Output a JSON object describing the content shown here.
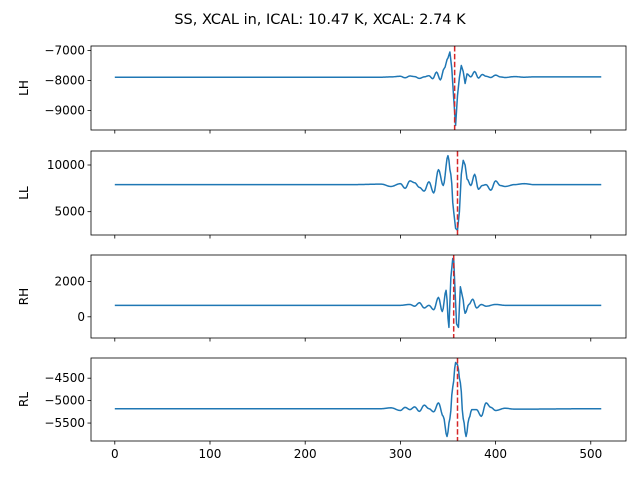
{
  "figure": {
    "title": "SS, XCAL in, ICAL: 10.47 K, XCAL: 2.74 K"
  },
  "chart_data": [
    {
      "type": "line",
      "ylabel": "LH",
      "xlim": [
        -25,
        537
      ],
      "ylim": [
        -9650,
        -6850
      ],
      "yticks": [
        -9000,
        -8000,
        -7000
      ],
      "yticklabels": [
        "−9000",
        "−8000",
        "−7000"
      ],
      "xticks": [
        0,
        100,
        200,
        300,
        400,
        500
      ],
      "xticklabels": [
        "",
        "",
        "",
        "",
        "",
        ""
      ],
      "line_color": "#1f77b4",
      "vline": {
        "x": 357,
        "color": "#d62728",
        "style": "dashed"
      },
      "signal": {
        "x": [
          0,
          280,
          290,
          300,
          305,
          310,
          315,
          320,
          325,
          330,
          334,
          338,
          342,
          346,
          350,
          352,
          354,
          356,
          358,
          360,
          362,
          364,
          366,
          368,
          370,
          374,
          378,
          382,
          386,
          390,
          395,
          400,
          405,
          410,
          420,
          430,
          440,
          511
        ],
        "y": [
          -7890,
          -7890,
          -7880,
          -7860,
          -7910,
          -7850,
          -7870,
          -7930,
          -7880,
          -7840,
          -7940,
          -7720,
          -7980,
          -7600,
          -7250,
          -7050,
          -7600,
          -8600,
          -9500,
          -8500,
          -7900,
          -7500,
          -7700,
          -8100,
          -7780,
          -7880,
          -7700,
          -7920,
          -7800,
          -7860,
          -7900,
          -7820,
          -7880,
          -7900,
          -7870,
          -7890,
          -7880,
          -7880
        ]
      }
    },
    {
      "type": "line",
      "ylabel": "LL",
      "xlim": [
        -25,
        537
      ],
      "ylim": [
        2500,
        11500
      ],
      "yticks": [
        5000,
        10000
      ],
      "yticklabels": [
        "5000",
        "10000"
      ],
      "xticks": [
        0,
        100,
        200,
        300,
        400,
        500
      ],
      "xticklabels": [
        "",
        "",
        "",
        "",
        "",
        ""
      ],
      "line_color": "#1f77b4",
      "vline": {
        "x": 360,
        "color": "#d62728",
        "style": "dashed"
      },
      "signal": {
        "x": [
          0,
          250,
          280,
          290,
          300,
          305,
          310,
          315,
          320,
          325,
          330,
          335,
          340,
          345,
          350,
          353,
          356,
          358,
          360,
          362,
          364,
          366,
          368,
          370,
          374,
          378,
          382,
          386,
          390,
          395,
          400,
          405,
          410,
          420,
          430,
          440,
          511
        ],
        "y": [
          7900,
          7900,
          7950,
          7700,
          8000,
          7500,
          8300,
          8100,
          7600,
          7200,
          8200,
          7000,
          9500,
          7800,
          11000,
          9000,
          5000,
          3200,
          3000,
          5000,
          9000,
          10500,
          10000,
          8500,
          7800,
          9000,
          7400,
          7800,
          7900,
          7300,
          8300,
          7800,
          7700,
          7900,
          8000,
          7900,
          7900
        ]
      }
    },
    {
      "type": "line",
      "ylabel": "RH",
      "xlim": [
        -25,
        537
      ],
      "ylim": [
        -1200,
        3500
      ],
      "yticks": [
        0,
        2000
      ],
      "yticklabels": [
        "0",
        "2000"
      ],
      "xticks": [
        0,
        100,
        200,
        300,
        400,
        500
      ],
      "xticklabels": [
        "",
        "",
        "",
        "",
        "",
        ""
      ],
      "line_color": "#1f77b4",
      "vline": {
        "x": 356,
        "color": "#d62728",
        "style": "dashed"
      },
      "signal": {
        "x": [
          0,
          300,
          310,
          315,
          320,
          325,
          330,
          335,
          340,
          344,
          348,
          351,
          353,
          355,
          356,
          357,
          359,
          361,
          363,
          365,
          368,
          372,
          376,
          380,
          385,
          390,
          400,
          410,
          420,
          511
        ],
        "y": [
          650,
          650,
          700,
          600,
          800,
          500,
          650,
          400,
          1100,
          300,
          1500,
          -600,
          2200,
          3300,
          3300,
          2000,
          -400,
          -600,
          1700,
          1200,
          200,
          700,
          1000,
          500,
          700,
          600,
          700,
          650,
          650,
          650
        ]
      }
    },
    {
      "type": "line",
      "ylabel": "RL",
      "xlim": [
        -25,
        537
      ],
      "ylim": [
        -5900,
        -4050
      ],
      "yticks": [
        -5500,
        -5000,
        -4500
      ],
      "yticklabels": [
        "−5500",
        "−5000",
        "−4500"
      ],
      "xticks": [
        0,
        100,
        200,
        300,
        400,
        500
      ],
      "xticklabels": [
        "0",
        "100",
        "200",
        "300",
        "400",
        "500"
      ],
      "line_color": "#1f77b4",
      "vline": {
        "x": 360,
        "color": "#d62728",
        "style": "dashed"
      },
      "signal": {
        "x": [
          0,
          280,
          290,
          300,
          305,
          310,
          315,
          320,
          325,
          330,
          335,
          340,
          345,
          349,
          352,
          355,
          358,
          360,
          363,
          366,
          369,
          372,
          375,
          380,
          385,
          390,
          395,
          400,
          410,
          420,
          511
        ],
        "y": [
          -5180,
          -5180,
          -5160,
          -5220,
          -5150,
          -5200,
          -5140,
          -5240,
          -5100,
          -5180,
          -5250,
          -5050,
          -5350,
          -5800,
          -5400,
          -4700,
          -4150,
          -4200,
          -4600,
          -5400,
          -5800,
          -5400,
          -5200,
          -5200,
          -5350,
          -5050,
          -5150,
          -5220,
          -5170,
          -5190,
          -5180
        ]
      }
    }
  ]
}
